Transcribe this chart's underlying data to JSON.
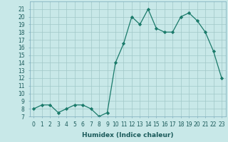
{
  "x": [
    0,
    1,
    2,
    3,
    4,
    5,
    6,
    7,
    8,
    9,
    10,
    11,
    12,
    13,
    14,
    15,
    16,
    17,
    18,
    19,
    20,
    21,
    22,
    23
  ],
  "y": [
    8,
    8.5,
    8.5,
    7.5,
    8,
    8.5,
    8.5,
    8,
    7,
    7.5,
    14,
    16.5,
    20,
    19,
    21,
    18.5,
    18,
    18,
    20,
    20.5,
    19.5,
    18,
    15.5,
    12
  ],
  "xlabel": "Humidex (Indice chaleur)",
  "line_color": "#1a7a6a",
  "marker": "D",
  "marker_size": 2.2,
  "xlim": [
    -0.5,
    23.5
  ],
  "ylim": [
    7,
    22
  ],
  "yticks": [
    7,
    8,
    9,
    10,
    11,
    12,
    13,
    14,
    15,
    16,
    17,
    18,
    19,
    20,
    21
  ],
  "xticks": [
    0,
    1,
    2,
    3,
    4,
    5,
    6,
    7,
    8,
    9,
    10,
    11,
    12,
    13,
    14,
    15,
    16,
    17,
    18,
    19,
    20,
    21,
    22,
    23
  ],
  "background_color": "#c8e8e8",
  "grid_color": "#a0c8c8",
  "tick_fontsize": 5.5,
  "xlabel_fontsize": 6.5
}
